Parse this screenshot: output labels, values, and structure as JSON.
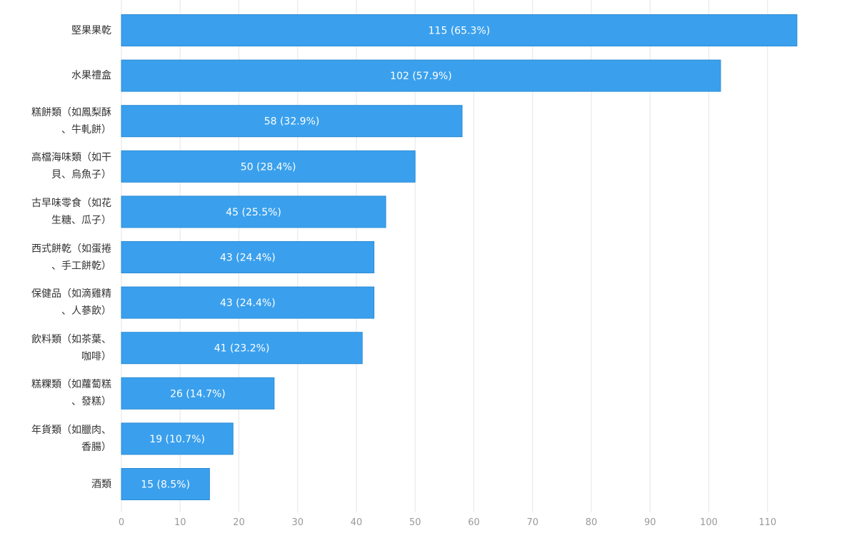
{
  "chart_data": {
    "type": "bar",
    "orientation": "horizontal",
    "categories": [
      [
        "堅果果乾"
      ],
      [
        "水果禮盒"
      ],
      [
        "糕餅類（如鳳梨酥",
        "、牛軋餅）"
      ],
      [
        "高檔海味類（如干",
        "貝、烏魚子）"
      ],
      [
        "古早味零食（如花",
        "生糖、瓜子）"
      ],
      [
        "西式餅乾（如蛋捲",
        "、手工餅乾）"
      ],
      [
        "保健品（如滴雞精",
        "、人蔘飲）"
      ],
      [
        "飲料類（如茶葉、",
        "咖啡）"
      ],
      [
        "糕粿類（如蘿蔔糕",
        "、發糕）"
      ],
      [
        "年貨類（如臘肉、",
        "香腸）"
      ],
      [
        "酒類"
      ]
    ],
    "values": [
      115,
      102,
      58,
      50,
      45,
      43,
      43,
      41,
      26,
      19,
      15
    ],
    "data_labels": [
      "115 (65.3%)",
      "102 (57.9%)",
      "58 (32.9%)",
      "50 (28.4%)",
      "45 (25.5%)",
      "43 (24.4%)",
      "43 (24.4%)",
      "41 (23.2%)",
      "26 (14.7%)",
      "19 (10.7%)",
      "15 (8.5%)"
    ],
    "x_ticks": [
      0,
      10,
      20,
      30,
      40,
      50,
      60,
      70,
      80,
      90,
      100,
      110
    ],
    "xlim": [
      0,
      125
    ],
    "grid": true,
    "bar_color": "#3aa0ed",
    "bar_edge_color": "#2b8bd6",
    "grid_color": "#e6e6e6",
    "tick_color": "#999999",
    "label_color": "#333333"
  }
}
